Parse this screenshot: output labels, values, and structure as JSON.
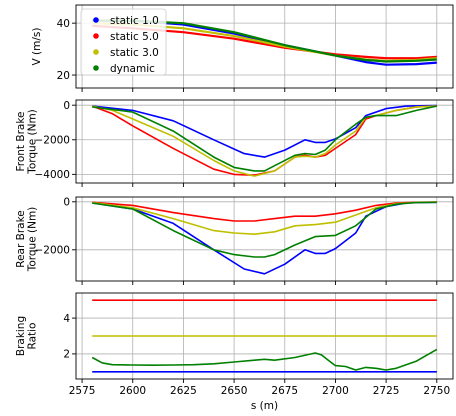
{
  "chart_data": [
    {
      "type": "line",
      "ylabel": "V (m/s)",
      "xlim": [
        2572,
        2758
      ],
      "ylim": [
        15,
        47
      ],
      "yticks": [
        20,
        40
      ],
      "xticks": [
        2575,
        2600,
        2625,
        2650,
        2675,
        2700,
        2725,
        2750
      ],
      "grid": true,
      "legend": "top-left",
      "series": [
        {
          "name": "static 1.0",
          "color": "#0000ff",
          "x": [
            2580,
            2600,
            2625,
            2650,
            2675,
            2700,
            2715,
            2725,
            2740,
            2750
          ],
          "y": [
            41,
            41,
            39.5,
            36,
            31.5,
            27.5,
            25,
            24,
            24.2,
            24.8
          ]
        },
        {
          "name": "static 5.0",
          "color": "#ff0000",
          "x": [
            2580,
            2600,
            2625,
            2650,
            2675,
            2700,
            2715,
            2725,
            2740,
            2750
          ],
          "y": [
            39,
            38,
            36.5,
            34,
            30.5,
            28,
            27,
            26.5,
            26.5,
            27
          ]
        },
        {
          "name": "static 3.0",
          "color": "#bfbf00",
          "x": [
            2580,
            2600,
            2625,
            2650,
            2675,
            2700,
            2715,
            2725,
            2740,
            2750
          ],
          "y": [
            40,
            39.5,
            38,
            35,
            31,
            27.5,
            26,
            25.5,
            25.8,
            26.5
          ]
        },
        {
          "name": "dynamic",
          "color": "#008000",
          "x": [
            2580,
            2600,
            2625,
            2650,
            2675,
            2700,
            2715,
            2725,
            2740,
            2750
          ],
          "y": [
            41,
            41,
            40,
            36.5,
            31.5,
            27.5,
            25.8,
            25.2,
            25.5,
            26
          ]
        }
      ]
    },
    {
      "type": "line",
      "ylabel": "Front Brake\nTorque (Nm)",
      "xlim": [
        2572,
        2758
      ],
      "ylim": [
        -4500,
        300
      ],
      "yticks": [
        -4000,
        -2000,
        0
      ],
      "xticks": [
        2575,
        2600,
        2625,
        2650,
        2675,
        2700,
        2725,
        2750
      ],
      "grid": true,
      "series": [
        {
          "name": "static 1.0",
          "color": "#0000ff",
          "x": [
            2580,
            2600,
            2620,
            2640,
            2655,
            2665,
            2675,
            2685,
            2690,
            2695,
            2700,
            2710,
            2715,
            2725,
            2735,
            2745,
            2750
          ],
          "y": [
            -50,
            -300,
            -900,
            -2000,
            -2800,
            -3000,
            -2600,
            -2000,
            -2150,
            -2150,
            -1950,
            -1300,
            -600,
            -200,
            -50,
            -30,
            -20
          ]
        },
        {
          "name": "static 5.0",
          "color": "#ff0000",
          "x": [
            2580,
            2590,
            2600,
            2620,
            2640,
            2650,
            2660,
            2670,
            2680,
            2685,
            2690,
            2695,
            2700,
            2710,
            2715,
            2720,
            2730,
            2740,
            2750
          ],
          "y": [
            -50,
            -500,
            -1200,
            -2500,
            -3700,
            -4000,
            -4050,
            -3800,
            -3000,
            -2900,
            -3000,
            -2900,
            -2500,
            -1700,
            -800,
            -600,
            -300,
            -100,
            -50
          ]
        },
        {
          "name": "static 3.0",
          "color": "#bfbf00",
          "x": [
            2580,
            2590,
            2600,
            2620,
            2640,
            2650,
            2660,
            2670,
            2680,
            2685,
            2690,
            2695,
            2700,
            2710,
            2715,
            2720,
            2730,
            2740,
            2750
          ],
          "y": [
            -50,
            -300,
            -800,
            -1800,
            -3200,
            -3800,
            -4100,
            -3800,
            -3000,
            -2950,
            -3000,
            -2800,
            -2300,
            -1500,
            -700,
            -600,
            -300,
            -100,
            -50
          ]
        },
        {
          "name": "dynamic",
          "color": "#008000",
          "x": [
            2580,
            2600,
            2620,
            2640,
            2650,
            2660,
            2665,
            2670,
            2680,
            2685,
            2690,
            2695,
            2700,
            2710,
            2715,
            2720,
            2730,
            2740,
            2750
          ],
          "y": [
            -100,
            -400,
            -1500,
            -3000,
            -3600,
            -3800,
            -3800,
            -3500,
            -2900,
            -2800,
            -2850,
            -2600,
            -2000,
            -1100,
            -700,
            -600,
            -600,
            -300,
            -50
          ]
        }
      ]
    },
    {
      "type": "line",
      "ylabel": "Rear Brake\nTorque (Nm)",
      "xlim": [
        2572,
        2758
      ],
      "ylim": [
        -3300,
        200
      ],
      "yticks": [
        -2000,
        0
      ],
      "xticks": [
        2575,
        2600,
        2625,
        2650,
        2675,
        2700,
        2725,
        2750
      ],
      "grid": true,
      "series": [
        {
          "name": "static 1.0",
          "color": "#0000ff",
          "x": [
            2580,
            2600,
            2620,
            2640,
            2655,
            2665,
            2675,
            2685,
            2690,
            2695,
            2700,
            2710,
            2715,
            2725,
            2735,
            2745,
            2750
          ],
          "y": [
            -50,
            -300,
            -900,
            -2000,
            -2800,
            -3000,
            -2600,
            -2000,
            -2150,
            -2150,
            -1950,
            -1300,
            -600,
            -200,
            -50,
            -30,
            -20
          ]
        },
        {
          "name": "static 5.0",
          "color": "#ff0000",
          "x": [
            2580,
            2600,
            2620,
            2640,
            2650,
            2660,
            2670,
            2680,
            2690,
            2700,
            2710,
            2720,
            2730,
            2740,
            2750
          ],
          "y": [
            -20,
            -150,
            -450,
            -700,
            -800,
            -800,
            -700,
            -600,
            -600,
            -500,
            -350,
            -150,
            -50,
            -20,
            -10
          ]
        },
        {
          "name": "static 3.0",
          "color": "#bfbf00",
          "x": [
            2580,
            2600,
            2620,
            2640,
            2650,
            2660,
            2670,
            2680,
            2690,
            2700,
            2710,
            2720,
            2730,
            2740,
            2750
          ],
          "y": [
            -30,
            -250,
            -700,
            -1200,
            -1300,
            -1350,
            -1250,
            -1000,
            -950,
            -850,
            -550,
            -250,
            -80,
            -30,
            -10
          ]
        },
        {
          "name": "dynamic",
          "color": "#008000",
          "x": [
            2580,
            2600,
            2620,
            2640,
            2650,
            2660,
            2665,
            2670,
            2680,
            2690,
            2700,
            2710,
            2720,
            2730,
            2740,
            2750
          ],
          "y": [
            -50,
            -300,
            -1200,
            -2000,
            -2200,
            -2300,
            -2300,
            -2200,
            -1800,
            -1450,
            -1400,
            -1000,
            -300,
            -100,
            -30,
            -20
          ]
        }
      ]
    },
    {
      "type": "line",
      "ylabel": "Braking\nRatio",
      "xlabel": "s (m)",
      "xlim": [
        2572,
        2758
      ],
      "ylim": [
        0.6,
        5.4
      ],
      "yticks": [
        2,
        4
      ],
      "xticks": [
        2575,
        2600,
        2625,
        2650,
        2675,
        2700,
        2725,
        2750
      ],
      "grid": true,
      "series": [
        {
          "name": "static 1.0",
          "color": "#0000ff",
          "x": [
            2580,
            2750
          ],
          "y": [
            1,
            1
          ]
        },
        {
          "name": "static 5.0",
          "color": "#ff0000",
          "x": [
            2580,
            2750
          ],
          "y": [
            5,
            5
          ]
        },
        {
          "name": "static 3.0",
          "color": "#bfbf00",
          "x": [
            2580,
            2750
          ],
          "y": [
            3,
            3
          ]
        },
        {
          "name": "dynamic",
          "color": "#008000",
          "x": [
            2580,
            2585,
            2590,
            2600,
            2610,
            2620,
            2630,
            2640,
            2650,
            2660,
            2665,
            2670,
            2680,
            2690,
            2693,
            2697,
            2700,
            2705,
            2710,
            2715,
            2720,
            2725,
            2730,
            2740,
            2750
          ],
          "y": [
            1.8,
            1.5,
            1.4,
            1.38,
            1.37,
            1.38,
            1.4,
            1.45,
            1.55,
            1.65,
            1.7,
            1.65,
            1.8,
            2.05,
            1.95,
            1.6,
            1.35,
            1.3,
            1.1,
            1.25,
            1.2,
            1.1,
            1.2,
            1.6,
            2.25
          ]
        }
      ]
    }
  ]
}
